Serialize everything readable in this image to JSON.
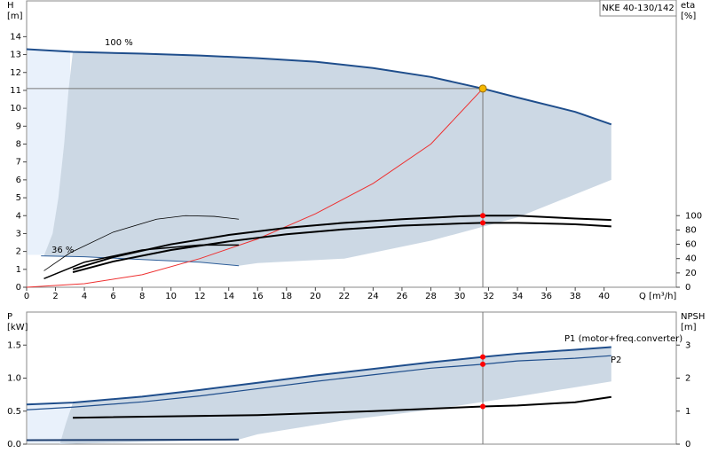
{
  "chart_data": [
    {
      "type": "line",
      "title": "NKE 40-130/142",
      "ylabel": "H",
      "yunit": "[m]",
      "y2label": "eta",
      "y2unit": "[%]",
      "xlabel": "Q [m³/h]",
      "xlim": [
        0,
        45
      ],
      "xticks": [
        0,
        2,
        4,
        6,
        8,
        10,
        12,
        14,
        16,
        18,
        20,
        22,
        24,
        26,
        28,
        30,
        32,
        34,
        36,
        38,
        40
      ],
      "ylim": [
        0,
        16
      ],
      "yticks": [
        0,
        1,
        2,
        3,
        4,
        5,
        6,
        7,
        8,
        9,
        10,
        11,
        12,
        13,
        14
      ],
      "y2lim": [
        0,
        400
      ],
      "y2ticks": [
        0,
        20,
        40,
        60,
        80,
        100
      ],
      "envelope": {
        "color": "#ccd8e4",
        "x": [
          3.2,
          8,
          12,
          16,
          20,
          24,
          28,
          31.6,
          34,
          38,
          40.5,
          40.5,
          34,
          28,
          22,
          16,
          14.7,
          12,
          8,
          4,
          1.2,
          1.8,
          2.2,
          2.6,
          2.9
        ],
        "y": [
          13.15,
          13.05,
          12.95,
          12.8,
          12.6,
          12.25,
          11.75,
          11.1,
          10.6,
          9.8,
          9.1,
          6.0,
          3.9,
          2.6,
          1.6,
          1.35,
          1.2,
          1.4,
          1.55,
          1.7,
          1.75,
          3,
          5,
          8,
          11
        ]
      },
      "series": [
        {
          "name": "100 %",
          "color": "#1f4e8c",
          "width": 2,
          "x": [
            0,
            3.2,
            8,
            12,
            16,
            20,
            24,
            28,
            31.6,
            34,
            38,
            40.5
          ],
          "values": [
            13.3,
            13.15,
            13.05,
            12.95,
            12.8,
            12.6,
            12.25,
            11.75,
            11.1,
            10.6,
            9.8,
            9.1
          ]
        },
        {
          "name": "36 %",
          "color": "#2f5f9a",
          "width": 1,
          "x": [
            1,
            4,
            8,
            12,
            14.7
          ],
          "values": [
            1.75,
            1.7,
            1.55,
            1.4,
            1.2
          ]
        },
        {
          "color": "#ee3030",
          "width": 1,
          "x": [
            0,
            4,
            8,
            12,
            16,
            20,
            24,
            28,
            31.6
          ],
          "values": [
            0,
            0.2,
            0.7,
            1.6,
            2.7,
            4.1,
            5.8,
            8,
            11.1
          ]
        },
        {
          "color": "#000000",
          "width": 2,
          "axis": "y2",
          "x": [
            3.2,
            6,
            10,
            14,
            18,
            22,
            26,
            30,
            31.6,
            34,
            38,
            40.5
          ],
          "values": [
            25,
            42,
            60,
            73,
            83,
            90,
            95,
            99,
            100,
            100,
            96,
            94
          ]
        },
        {
          "color": "#000000",
          "width": 2,
          "axis": "y2",
          "x": [
            3.2,
            6,
            10,
            14,
            18,
            22,
            26,
            30,
            31.6,
            34,
            38,
            40.5
          ],
          "values": [
            21,
            36,
            52,
            64,
            74,
            81,
            86,
            89,
            90,
            90,
            88,
            85
          ]
        },
        {
          "color": "#000000",
          "width": 0.8,
          "axis": "y2",
          "x": [
            1.2,
            3,
            6,
            9,
            11,
            13,
            14.7
          ],
          "values": [
            23,
            48,
            77,
            95,
            100,
            99,
            95
          ]
        },
        {
          "color": "#000000",
          "width": 1.5,
          "axis": "y2",
          "x": [
            1.2,
            4,
            8,
            12,
            14.7
          ],
          "values": [
            12,
            35,
            52,
            59,
            59
          ]
        }
      ],
      "duty_point": {
        "x": 31.6,
        "y": 11.1,
        "color": "#f5b800"
      },
      "points": [
        {
          "x": 31.6,
          "y": 100,
          "axis": "y2",
          "color": "#ff0000"
        },
        {
          "x": 31.6,
          "y": 90,
          "axis": "y2",
          "color": "#ff0000"
        }
      ]
    },
    {
      "type": "line",
      "ylabel": "P",
      "yunit": "[kW]",
      "y2label": "NPSH",
      "y2unit": "[m]",
      "xlim": [
        0,
        45
      ],
      "ylim": [
        0,
        2
      ],
      "yticks": [
        {
          "value": 0,
          "label": "0.0"
        },
        0.5,
        {
          "value": 1,
          "label": "1.0"
        },
        1.5
      ],
      "y2lim": [
        0,
        4
      ],
      "y2ticks": [
        0,
        1,
        2,
        3
      ],
      "envelope": {
        "color": "#ccd8e4",
        "x": [
          3.2,
          8,
          12,
          16,
          20,
          24,
          28,
          31.6,
          34,
          38,
          40.5,
          40.5,
          34,
          28,
          22,
          16,
          14.7,
          2.3,
          2.7
        ],
        "y": [
          0.63,
          0.72,
          0.82,
          0.93,
          1.04,
          1.14,
          1.24,
          1.32,
          1.37,
          1.43,
          1.47,
          0.95,
          0.72,
          0.52,
          0.36,
          0.15,
          0.07,
          0,
          0.3
        ]
      },
      "series": [
        {
          "name": "P1 (motor+freq.converter)",
          "color": "#1f4e8c",
          "width": 2,
          "x": [
            0,
            3.2,
            8,
            12,
            16,
            20,
            24,
            28,
            31.6,
            34,
            38,
            40.5
          ],
          "values": [
            0.6,
            0.63,
            0.72,
            0.82,
            0.93,
            1.04,
            1.14,
            1.24,
            1.32,
            1.37,
            1.43,
            1.47
          ]
        },
        {
          "name": "P2",
          "color": "#1f4e8c",
          "width": 1.2,
          "x": [
            0,
            3.2,
            8,
            12,
            16,
            20,
            24,
            28,
            31.6,
            34,
            38,
            40.5
          ],
          "values": [
            0.52,
            0.56,
            0.64,
            0.73,
            0.84,
            0.95,
            1.05,
            1.15,
            1.21,
            1.26,
            1.3,
            1.34
          ]
        },
        {
          "color": "#000000",
          "width": 2,
          "axis": "y2",
          "x": [
            3.2,
            16,
            24,
            31.6,
            34,
            38,
            40.5
          ],
          "values": [
            0.8,
            0.88,
            1.0,
            1.14,
            1.17,
            1.27,
            1.43
          ]
        },
        {
          "color": "#1f3f6f",
          "width": 2,
          "x": [
            0,
            14.7
          ],
          "values": [
            0.06,
            0.07
          ]
        }
      ],
      "points": [
        {
          "x": 31.6,
          "y": 1.32,
          "color": "#ff0000"
        },
        {
          "x": 31.6,
          "y": 1.21,
          "color": "#ff0000"
        },
        {
          "x": 31.6,
          "y": 1.14,
          "axis": "y2",
          "color": "#ff0000"
        }
      ]
    }
  ]
}
